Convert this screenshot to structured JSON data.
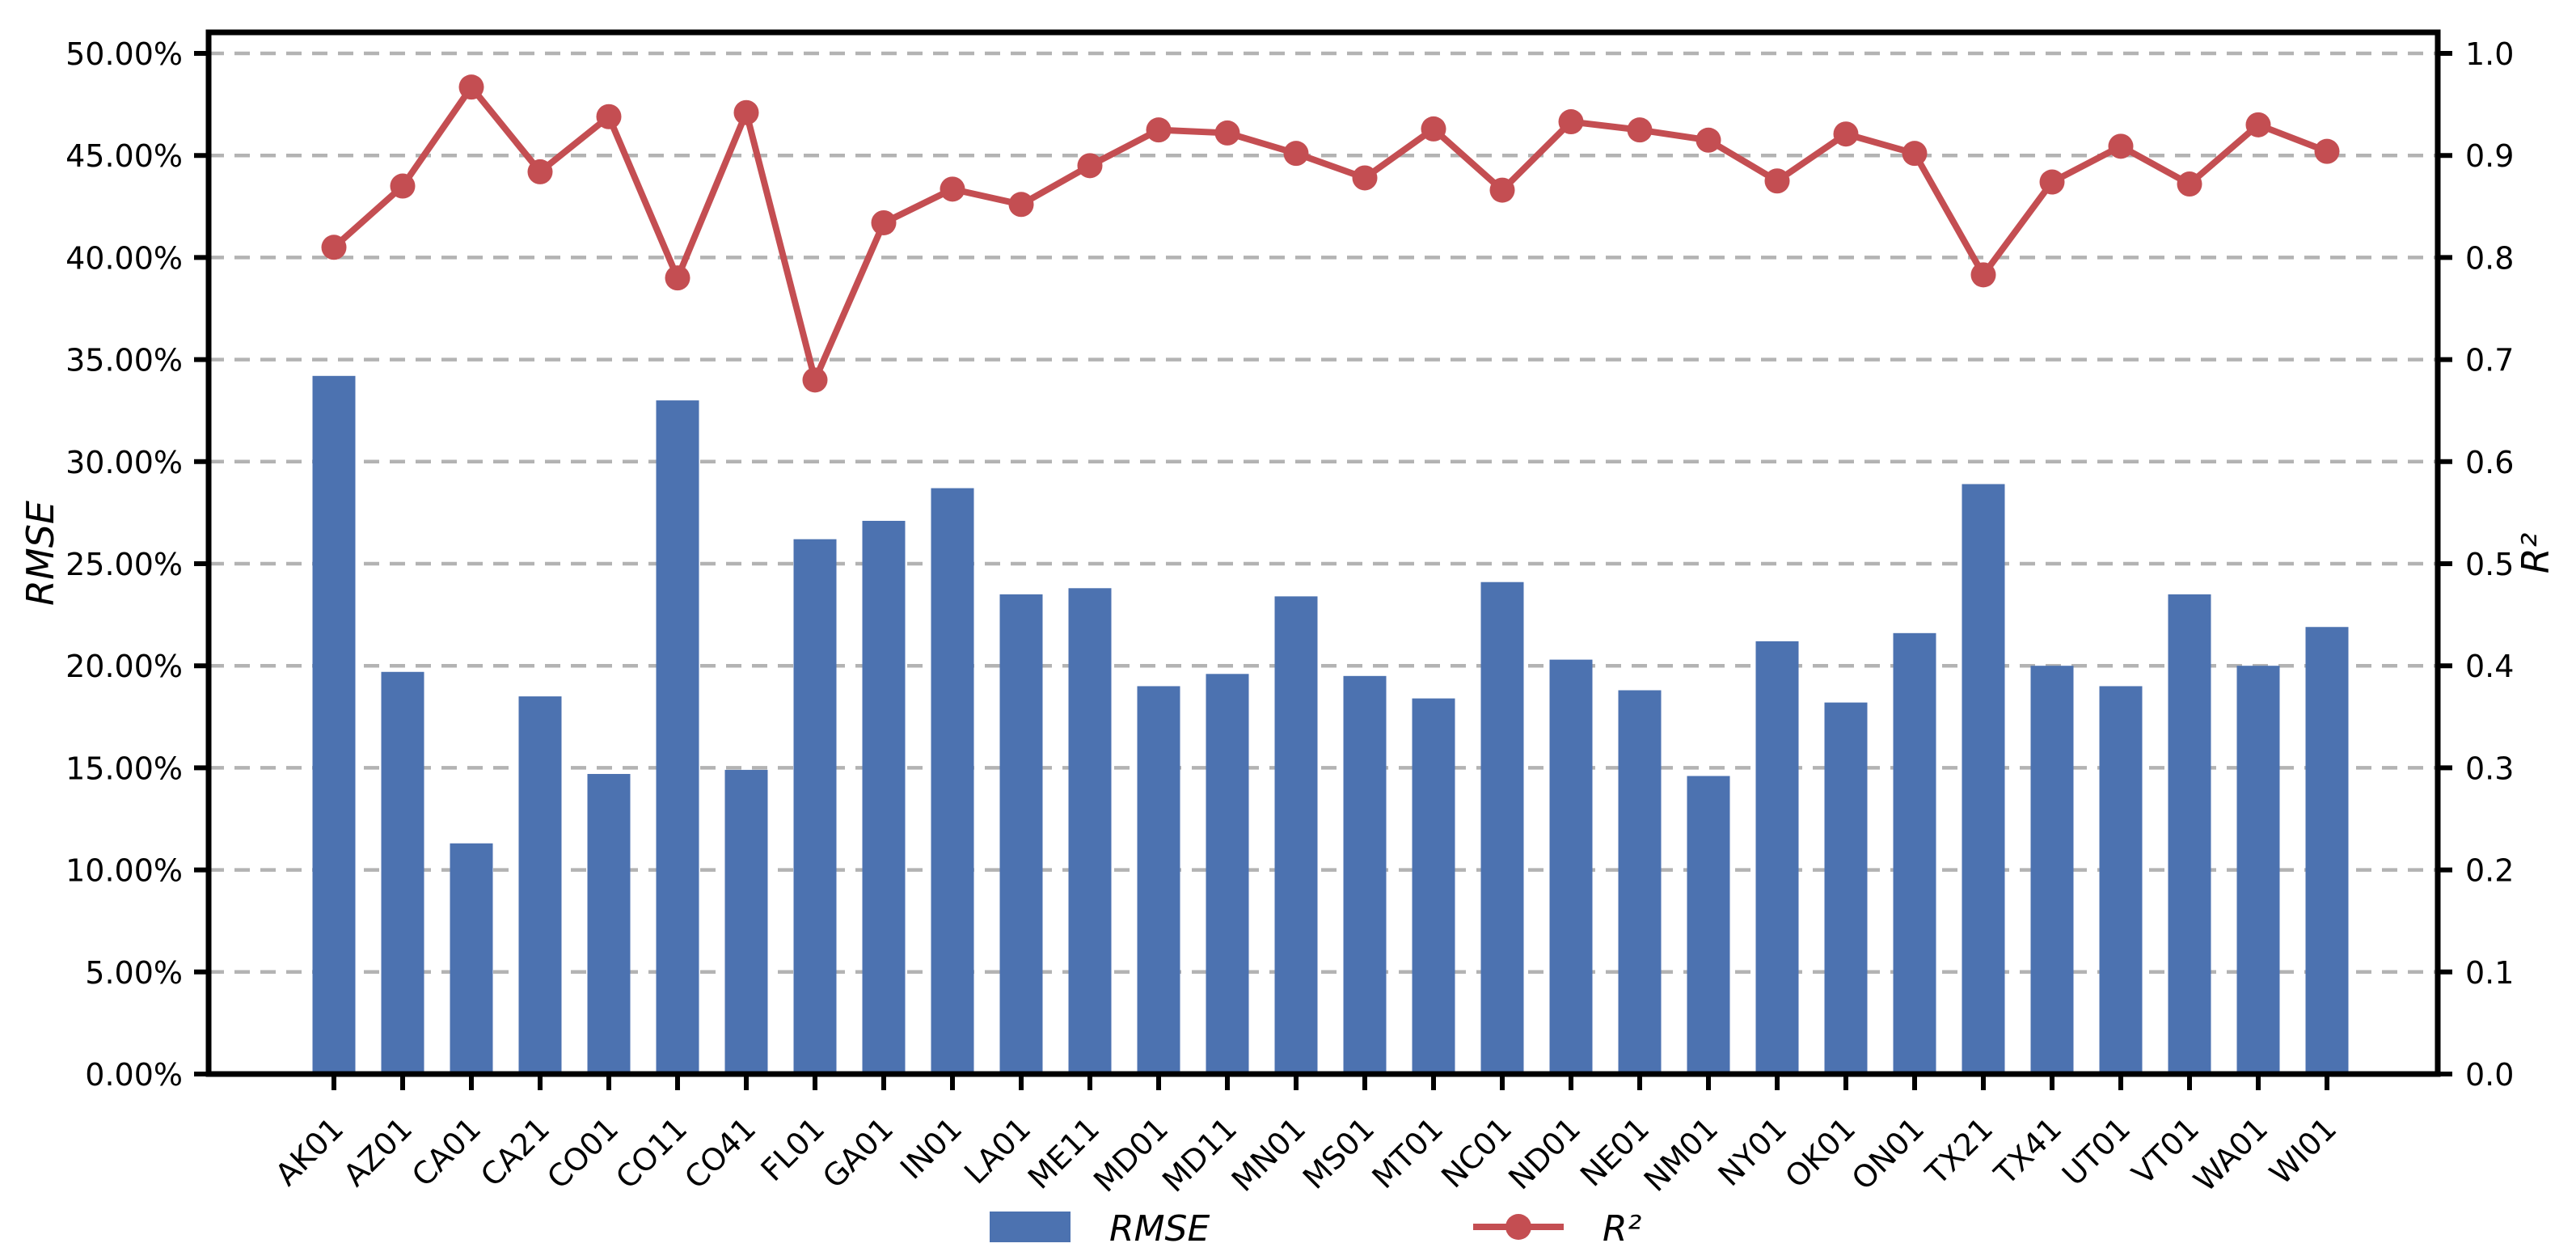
{
  "chart_data": {
    "type": "bar",
    "subtype": "dual-axis bar + line combo",
    "title": "",
    "categories": [
      "AK01",
      "AZ01",
      "CA01",
      "CA21",
      "CO01",
      "CO11",
      "CO41",
      "FL01",
      "GA01",
      "IN01",
      "LA01",
      "ME11",
      "MD01",
      "MD11",
      "MN01",
      "MS01",
      "MT01",
      "NC01",
      "ND01",
      "NE01",
      "NM01",
      "NY01",
      "OK01",
      "ON01",
      "TX21",
      "TX41",
      "UT01",
      "VT01",
      "WA01",
      "WI01"
    ],
    "series": [
      {
        "name": "RMSE",
        "chart_type": "bar",
        "axis": "left",
        "unit": "%",
        "color": "#4C72B0",
        "values": [
          34.2,
          19.7,
          11.3,
          18.5,
          14.7,
          33.0,
          14.9,
          26.2,
          27.1,
          28.7,
          23.5,
          23.8,
          19.0,
          19.6,
          23.4,
          19.5,
          18.4,
          24.1,
          20.3,
          18.8,
          14.6,
          21.2,
          18.2,
          21.6,
          28.9,
          20.0,
          19.0,
          23.5,
          20.0,
          21.9
        ]
      },
      {
        "name": "R²",
        "chart_type": "line",
        "axis": "right",
        "unit": "",
        "color": "#C44E52",
        "values": [
          0.81,
          0.87,
          0.967,
          0.884,
          0.938,
          0.78,
          0.942,
          0.68,
          0.834,
          0.867,
          0.852,
          0.89,
          0.925,
          0.922,
          0.902,
          0.878,
          0.926,
          0.866,
          0.933,
          0.925,
          0.915,
          0.875,
          0.921,
          0.902,
          0.783,
          0.874,
          0.909,
          0.872,
          0.93,
          0.904
        ]
      }
    ],
    "left_axis": {
      "label": "RMSE",
      "range": [
        0,
        50
      ],
      "tick_step": 5,
      "ticks": [
        "0.00%",
        "5.00%",
        "10.00%",
        "15.00%",
        "20.00%",
        "25.00%",
        "30.00%",
        "35.00%",
        "40.00%",
        "45.00%",
        "50.00%"
      ]
    },
    "right_axis": {
      "label": "R²",
      "range": [
        0,
        1.0
      ],
      "tick_step": 0.1,
      "ticks": [
        "0.0",
        "0.1",
        "0.2",
        "0.3",
        "0.4",
        "0.5",
        "0.6",
        "0.7",
        "0.8",
        "0.9",
        "1.0"
      ]
    },
    "x_axis": {
      "label": "",
      "tick_rotation_deg": 45
    },
    "grid": {
      "horizontal": true,
      "vertical": false,
      "style": "dashed",
      "color": "#b3b3b3"
    },
    "legend": {
      "position": "bottom-center",
      "entries": [
        {
          "label": "RMSE",
          "swatch": "bar-patch",
          "color": "#4C72B0"
        },
        {
          "label": "R²",
          "swatch": "line-marker",
          "color": "#C44E52"
        }
      ]
    }
  }
}
